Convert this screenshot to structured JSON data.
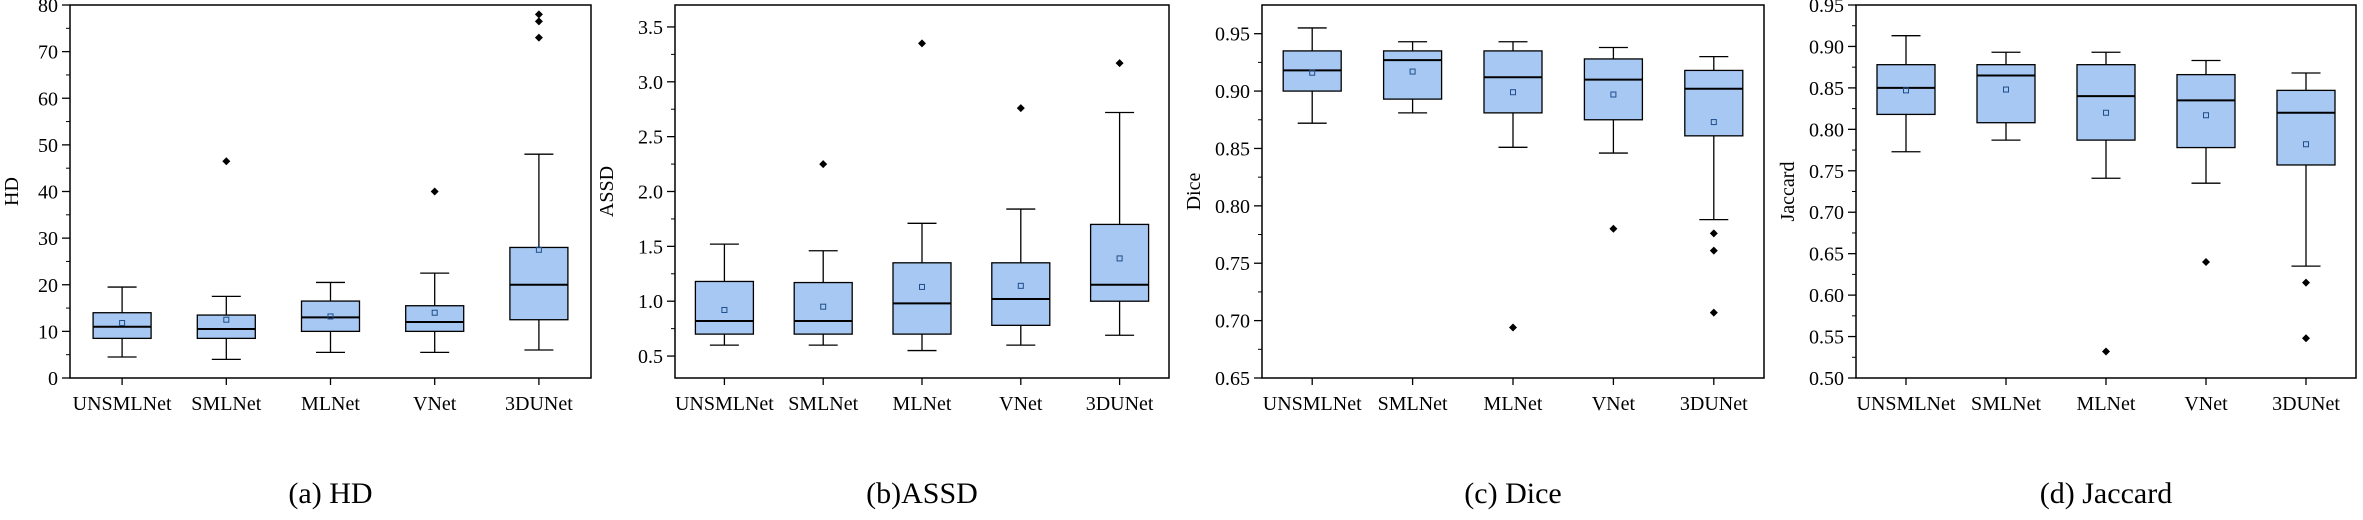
{
  "chart_data": [
    {
      "type": "box",
      "caption": "(a) HD",
      "ylabel": "HD",
      "xlabel": "",
      "ylim": [
        0,
        80
      ],
      "yticks": [
        0,
        10,
        20,
        30,
        40,
        50,
        60,
        70,
        80
      ],
      "ytick_labels": [
        "0",
        "10",
        "20",
        "30",
        "40",
        "50",
        "60",
        "70",
        "80"
      ],
      "box_color": "#a6c8f2",
      "grid": false,
      "categories": [
        "UNSMLNet",
        "SMLNet",
        "MLNet",
        "VNet",
        "3DUNet"
      ],
      "boxes": [
        {
          "name": "UNSMLNet",
          "whisker_low": 4.5,
          "q1": 8.5,
          "median": 11,
          "q3": 14,
          "whisker_high": 19.5,
          "mean": 11.8,
          "outliers": []
        },
        {
          "name": "SMLNet",
          "whisker_low": 4,
          "q1": 8.5,
          "median": 10.5,
          "q3": 13.5,
          "whisker_high": 17.5,
          "mean": 12.5,
          "outliers": [
            46.5
          ]
        },
        {
          "name": "MLNet",
          "whisker_low": 5.5,
          "q1": 10,
          "median": 13,
          "q3": 16.5,
          "whisker_high": 20.5,
          "mean": 13.2,
          "outliers": []
        },
        {
          "name": "VNet",
          "whisker_low": 5.5,
          "q1": 10,
          "median": 12,
          "q3": 15.5,
          "whisker_high": 22.5,
          "mean": 14,
          "outliers": [
            40
          ]
        },
        {
          "name": "3DUNet",
          "whisker_low": 6,
          "q1": 12.5,
          "median": 20,
          "q3": 28,
          "whisker_high": 48,
          "mean": 27.5,
          "outliers": [
            73,
            76.5,
            78
          ]
        }
      ]
    },
    {
      "type": "box",
      "caption": "(b)ASSD",
      "ylabel": "ASSD",
      "xlabel": "",
      "ylim": [
        0.3,
        3.7
      ],
      "yticks": [
        0.5,
        1.0,
        1.5,
        2.0,
        2.5,
        3.0,
        3.5
      ],
      "ytick_labels": [
        "0.5",
        "1.0",
        "1.5",
        "2.0",
        "2.5",
        "3.0",
        "3.5"
      ],
      "box_color": "#a6c8f2",
      "grid": false,
      "categories": [
        "UNSMLNet",
        "SMLNet",
        "MLNet",
        "VNet",
        "3DUNet"
      ],
      "boxes": [
        {
          "name": "UNSMLNet",
          "whisker_low": 0.6,
          "q1": 0.7,
          "median": 0.82,
          "q3": 1.18,
          "whisker_high": 1.52,
          "mean": 0.92,
          "outliers": []
        },
        {
          "name": "SMLNet",
          "whisker_low": 0.6,
          "q1": 0.7,
          "median": 0.82,
          "q3": 1.17,
          "whisker_high": 1.46,
          "mean": 0.95,
          "outliers": [
            2.25
          ]
        },
        {
          "name": "MLNet",
          "whisker_low": 0.55,
          "q1": 0.7,
          "median": 0.98,
          "q3": 1.35,
          "whisker_high": 1.71,
          "mean": 1.13,
          "outliers": [
            3.35
          ]
        },
        {
          "name": "VNet",
          "whisker_low": 0.6,
          "q1": 0.78,
          "median": 1.02,
          "q3": 1.35,
          "whisker_high": 1.84,
          "mean": 1.14,
          "outliers": [
            2.76
          ]
        },
        {
          "name": "3DUNet",
          "whisker_low": 0.69,
          "q1": 1.0,
          "median": 1.15,
          "q3": 1.7,
          "whisker_high": 2.72,
          "mean": 1.39,
          "outliers": [
            3.17
          ]
        }
      ]
    },
    {
      "type": "box",
      "caption": "(c) Dice",
      "ylabel": "Dice",
      "xlabel": "",
      "ylim": [
        0.65,
        0.975
      ],
      "yticks": [
        0.65,
        0.7,
        0.75,
        0.8,
        0.85,
        0.9,
        0.95
      ],
      "ytick_labels": [
        "0.65",
        "0.70",
        "0.75",
        "0.80",
        "0.85",
        "0.90",
        "0.95"
      ],
      "box_color": "#a6c8f2",
      "grid": false,
      "categories": [
        "UNSMLNet",
        "SMLNet",
        "MLNet",
        "VNet",
        "3DUNet"
      ],
      "boxes": [
        {
          "name": "UNSMLNet",
          "whisker_low": 0.872,
          "q1": 0.9,
          "median": 0.918,
          "q3": 0.935,
          "whisker_high": 0.955,
          "mean": 0.916,
          "outliers": []
        },
        {
          "name": "SMLNet",
          "whisker_low": 0.881,
          "q1": 0.893,
          "median": 0.927,
          "q3": 0.935,
          "whisker_high": 0.943,
          "mean": 0.917,
          "outliers": []
        },
        {
          "name": "MLNet",
          "whisker_low": 0.851,
          "q1": 0.881,
          "median": 0.912,
          "q3": 0.935,
          "whisker_high": 0.943,
          "mean": 0.899,
          "outliers": [
            0.694
          ]
        },
        {
          "name": "VNet",
          "whisker_low": 0.846,
          "q1": 0.875,
          "median": 0.91,
          "q3": 0.928,
          "whisker_high": 0.938,
          "mean": 0.897,
          "outliers": [
            0.78
          ]
        },
        {
          "name": "3DUNet",
          "whisker_low": 0.788,
          "q1": 0.861,
          "median": 0.902,
          "q3": 0.918,
          "whisker_high": 0.93,
          "mean": 0.873,
          "outliers": [
            0.776,
            0.761,
            0.707
          ]
        }
      ]
    },
    {
      "type": "box",
      "caption": "(d) Jaccard",
      "ylabel": "Jaccard",
      "xlabel": "",
      "ylim": [
        0.5,
        0.95
      ],
      "yticks": [
        0.5,
        0.55,
        0.6,
        0.65,
        0.7,
        0.75,
        0.8,
        0.85,
        0.9,
        0.95
      ],
      "ytick_labels": [
        "0.50",
        "0.55",
        "0.60",
        "0.65",
        "0.70",
        "0.75",
        "0.80",
        "0.85",
        "0.90",
        "0.95"
      ],
      "box_color": "#a6c8f2",
      "grid": false,
      "categories": [
        "UNSMLNet",
        "SMLNet",
        "MLNet",
        "VNet",
        "3DUNet"
      ],
      "boxes": [
        {
          "name": "UNSMLNet",
          "whisker_low": 0.773,
          "q1": 0.818,
          "median": 0.85,
          "q3": 0.878,
          "whisker_high": 0.913,
          "mean": 0.847,
          "outliers": []
        },
        {
          "name": "SMLNet",
          "whisker_low": 0.787,
          "q1": 0.808,
          "median": 0.865,
          "q3": 0.878,
          "whisker_high": 0.893,
          "mean": 0.848,
          "outliers": []
        },
        {
          "name": "MLNet",
          "whisker_low": 0.741,
          "q1": 0.787,
          "median": 0.84,
          "q3": 0.878,
          "whisker_high": 0.893,
          "mean": 0.82,
          "outliers": [
            0.532
          ]
        },
        {
          "name": "VNet",
          "whisker_low": 0.735,
          "q1": 0.778,
          "median": 0.835,
          "q3": 0.866,
          "whisker_high": 0.883,
          "mean": 0.817,
          "outliers": [
            0.64
          ]
        },
        {
          "name": "3DUNet",
          "whisker_low": 0.635,
          "q1": 0.757,
          "median": 0.82,
          "q3": 0.847,
          "whisker_high": 0.868,
          "mean": 0.782,
          "outliers": [
            0.615,
            0.548
          ]
        }
      ]
    }
  ]
}
